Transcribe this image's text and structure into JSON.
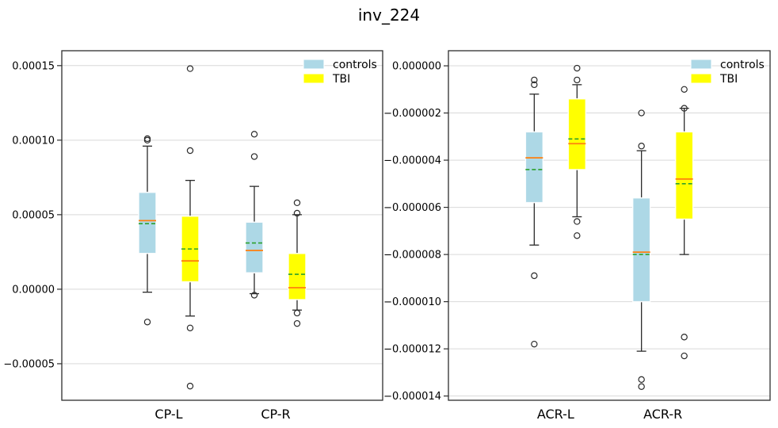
{
  "title": "inv_224",
  "legend": {
    "items": [
      {
        "label": "controls",
        "color": "#ADD8E6"
      },
      {
        "label": "TBI",
        "color": "#FFFF00"
      }
    ]
  },
  "style_colors": {
    "controls_fill": "#ADD8E6",
    "tbi_fill": "#FFFF00",
    "median": "#FF7F0E",
    "mean": "#2CA02C",
    "whisker": "#2A2A2A",
    "grid": "#D9D9D9",
    "spine": "#2E2E2E"
  },
  "chart_data": [
    {
      "type": "boxplot",
      "name": "CP",
      "categories": [
        "CP-L",
        "CP-R"
      ],
      "ylim": [
        -7.45e-05,
        0.00016
      ],
      "grid": true,
      "legend_position": "upper right",
      "yticks": [
        {
          "value": 0.00015,
          "label": "0.00015"
        },
        {
          "value": 0.0001,
          "label": "0.00010"
        },
        {
          "value": 5e-05,
          "label": "0.00005"
        },
        {
          "value": 0.0,
          "label": "0.00000"
        },
        {
          "value": -5e-05,
          "label": "−0.00005"
        }
      ],
      "series": [
        {
          "name": "controls",
          "color": "#ADD8E6",
          "boxes": [
            {
              "whislo": -2e-06,
              "q1": 2.4e-05,
              "med": 4.6e-05,
              "mean": 4.4e-05,
              "q3": 6.5e-05,
              "whishi": 9.6e-05,
              "fliers": [
                0.000101,
                0.0001,
                -2.2e-05
              ]
            },
            {
              "whislo": -3e-06,
              "q1": 1.1e-05,
              "med": 2.6e-05,
              "mean": 3.1e-05,
              "q3": 4.5e-05,
              "whishi": 6.9e-05,
              "fliers": [
                0.000104,
                8.9e-05,
                -4e-06
              ]
            }
          ]
        },
        {
          "name": "TBI",
          "color": "#FFFF00",
          "boxes": [
            {
              "whislo": -1.8e-05,
              "q1": 5e-06,
              "med": 1.9e-05,
              "mean": 2.7e-05,
              "q3": 4.9e-05,
              "whishi": 7.3e-05,
              "fliers": [
                0.000148,
                9.3e-05,
                -2.6e-05,
                -6.5e-05
              ]
            },
            {
              "whislo": -1.4e-05,
              "q1": -7e-06,
              "med": 1e-06,
              "mean": 1e-05,
              "q3": 2.4e-05,
              "whishi": 5e-05,
              "fliers": [
                5.8e-05,
                5.1e-05,
                -1.6e-05,
                -2.3e-05
              ]
            }
          ]
        }
      ]
    },
    {
      "type": "boxplot",
      "name": "ACR",
      "categories": [
        "ACR-L",
        "ACR-R"
      ],
      "ylim": [
        -1.418e-05,
        6.4e-07
      ],
      "grid": true,
      "legend_position": "upper right",
      "yticks": [
        {
          "value": 0.0,
          "label": "0.000000"
        },
        {
          "value": -2e-06,
          "label": "−0.000002"
        },
        {
          "value": -4e-06,
          "label": "−0.000004"
        },
        {
          "value": -6e-06,
          "label": "−0.000006"
        },
        {
          "value": -8e-06,
          "label": "−0.000008"
        },
        {
          "value": -1e-05,
          "label": "−0.000010"
        },
        {
          "value": -1.2e-05,
          "label": "−0.000012"
        },
        {
          "value": -1.4e-05,
          "label": "−0.000014"
        }
      ],
      "series": [
        {
          "name": "controls",
          "color": "#ADD8E6",
          "boxes": [
            {
              "whislo": -7.6e-06,
              "q1": -5.8e-06,
              "med": -3.9e-06,
              "mean": -4.4e-06,
              "q3": -2.8e-06,
              "whishi": -1.2e-06,
              "fliers": [
                -6e-07,
                -8e-07,
                -8.9e-06,
                -1.18e-05
              ]
            },
            {
              "whislo": -1.21e-05,
              "q1": -1e-05,
              "med": -7.9e-06,
              "mean": -8e-06,
              "q3": -5.6e-06,
              "whishi": -3.6e-06,
              "fliers": [
                -2e-06,
                -3.4e-06,
                -1.33e-05,
                -1.36e-05
              ]
            }
          ]
        },
        {
          "name": "TBI",
          "color": "#FFFF00",
          "boxes": [
            {
              "whislo": -6.4e-06,
              "q1": -4.4e-06,
              "med": -3.3e-06,
              "mean": -3.1e-06,
              "q3": -1.4e-06,
              "whishi": -8e-07,
              "fliers": [
                -1e-07,
                -6e-07,
                -6.6e-06,
                -7.2e-06
              ]
            },
            {
              "whislo": -8e-06,
              "q1": -6.5e-06,
              "med": -4.8e-06,
              "mean": -5e-06,
              "q3": -2.8e-06,
              "whishi": -1.8e-06,
              "fliers": [
                -1e-06,
                -1.8e-06,
                -1.15e-05,
                -1.23e-05
              ]
            }
          ]
        }
      ]
    }
  ]
}
